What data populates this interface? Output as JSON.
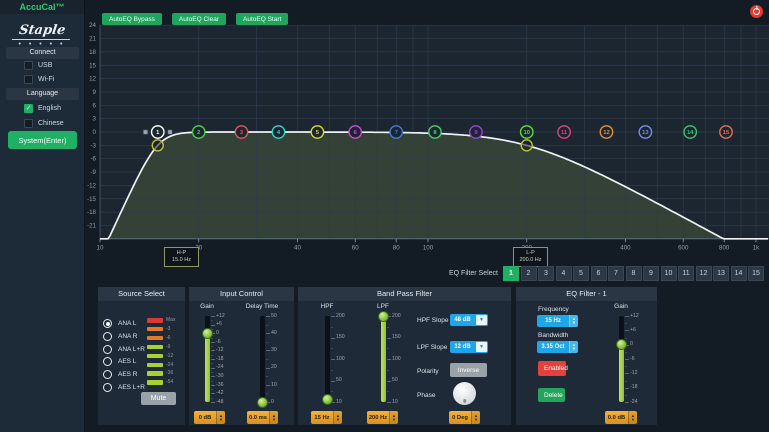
{
  "app": {
    "title": "AccuCal™",
    "brand": "Staple",
    "brand_dots": "• • • • •"
  },
  "sidebar": {
    "connect_header": "Connect",
    "connect_items": [
      {
        "label": "USB",
        "checked": false
      },
      {
        "label": "Wi-Fi",
        "checked": false
      }
    ],
    "language_header": "Language",
    "language_items": [
      {
        "label": "English",
        "checked": true
      },
      {
        "label": "Chinese",
        "checked": false
      }
    ],
    "system_button": "System(Enter)"
  },
  "toolbar": {
    "buttons": [
      "AutoEQ Bypass",
      "AutoEQ Clear",
      "AutoEQ Start"
    ]
  },
  "graph": {
    "type": "line",
    "x_axis": {
      "unit": "Hz",
      "labels": [
        {
          "text": "10",
          "f": 10
        },
        {
          "text": "20",
          "f": 20
        },
        {
          "text": "40",
          "f": 40
        },
        {
          "text": "60",
          "f": 60
        },
        {
          "text": "80",
          "f": 80
        },
        {
          "text": "100",
          "f": 100
        },
        {
          "text": "200",
          "f": 200
        },
        {
          "text": "400",
          "f": 400
        },
        {
          "text": "600",
          "f": 600
        },
        {
          "text": "800",
          "f": 800
        },
        {
          "text": "1k",
          "f": 1000
        }
      ]
    },
    "y_axis": {
      "unit": "dB",
      "min": -24,
      "max": 24,
      "step": 3
    },
    "y_tick_labels": [
      "24",
      "21",
      "18",
      "15",
      "12",
      "9",
      "6",
      "3",
      "0",
      "-3",
      "-6",
      "-9",
      "-12",
      "-15",
      "-18",
      "-21"
    ],
    "grid_freqs": [
      20,
      30,
      40,
      50,
      60,
      70,
      80,
      90,
      100,
      200,
      300,
      400,
      500,
      600,
      700,
      800,
      900,
      1000
    ],
    "curve": {
      "hp_freq_hz": 15,
      "hp_slope_db_oct": 48,
      "lp_freq_hz": 200,
      "lp_slope_db_oct": 12,
      "flat_gain_db": 0
    },
    "points": [
      {
        "n": "1",
        "f": 15,
        "color": "#ffffff",
        "selected": true
      },
      {
        "n": "2",
        "f": 20,
        "color": "#4ad04a"
      },
      {
        "n": "3",
        "f": 27,
        "color": "#e05555"
      },
      {
        "n": "4",
        "f": 35,
        "color": "#2fd6c4"
      },
      {
        "n": "5",
        "f": 46,
        "color": "#d8d832"
      },
      {
        "n": "6",
        "f": 60,
        "color": "#d644d6"
      },
      {
        "n": "7",
        "f": 80,
        "color": "#4479e0"
      },
      {
        "n": "8",
        "f": 105,
        "color": "#44d06a"
      },
      {
        "n": "9",
        "f": 140,
        "color": "#9544e0"
      },
      {
        "n": "10",
        "f": 200,
        "color": "#62d935"
      },
      {
        "n": "11",
        "f": 260,
        "color": "#e04480"
      },
      {
        "n": "12",
        "f": 350,
        "color": "#e0903a"
      },
      {
        "n": "13",
        "f": 460,
        "color": "#7a8ae6"
      },
      {
        "n": "14",
        "f": 630,
        "color": "#3cc272"
      },
      {
        "n": "15",
        "f": 810,
        "color": "#e0705c"
      }
    ],
    "hp_marker": {
      "label": "H-P",
      "value": "15.0 Hz"
    },
    "lp_marker": {
      "label": "L-P",
      "value": "200.0 Hz"
    },
    "handle_color": "#b9c23a"
  },
  "filter_select": {
    "label": "EQ Filter Select",
    "selected": "1",
    "items": [
      "1",
      "2",
      "3",
      "4",
      "5",
      "6",
      "7",
      "8",
      "9",
      "10",
      "11",
      "12",
      "13",
      "14",
      "15"
    ]
  },
  "panels": {
    "source": {
      "title": "Source Select",
      "options": [
        {
          "label": "ANA L",
          "selected": true
        },
        {
          "label": "ANA R",
          "selected": false
        },
        {
          "label": "ANA L+R",
          "selected": false
        },
        {
          "label": "AES L",
          "selected": false
        },
        {
          "label": "AES R",
          "selected": false
        },
        {
          "label": "AES L+R",
          "selected": false
        }
      ],
      "meter": [
        {
          "label": "Max",
          "color": "#d93a32"
        },
        {
          "label": "-3",
          "color": "#e07b28"
        },
        {
          "label": "-6",
          "color": "#e07b28"
        },
        {
          "label": "-9",
          "color": "#a9d22f"
        },
        {
          "label": "-12",
          "color": "#a9d22f"
        },
        {
          "label": "-24",
          "color": "#a9d22f"
        },
        {
          "label": "-36",
          "color": "#a9d22f"
        },
        {
          "label": "-54",
          "color": "#a9d22f"
        }
      ],
      "mute_button": "Mute"
    },
    "input": {
      "title": "Input Control",
      "gain": {
        "label": "Gain",
        "scale": [
          "+12",
          "+6",
          "0",
          "-6",
          "-12",
          "-18",
          "-24",
          "-30",
          "-36",
          "-42",
          "-48"
        ],
        "value": "0 dB"
      },
      "delay": {
        "label": "Delay Time",
        "scale": [
          "50",
          "40",
          "30",
          "20",
          "10",
          "0"
        ],
        "value": "0.0 ms"
      }
    },
    "bandpass": {
      "title": "Band Pass Filter",
      "hpf": {
        "label": "HPF",
        "scale": [
          "200",
          "150",
          "100",
          "50",
          "10"
        ],
        "value": "15 Hz"
      },
      "lpf": {
        "label": "LPF",
        "scale": [
          "200",
          "150",
          "100",
          "50",
          "10"
        ],
        "value": "200 Hz"
      },
      "hpf_slope": {
        "label": "HPF Slope",
        "value": "48 dB"
      },
      "lpf_slope": {
        "label": "LPF Slope",
        "value": "12 dB"
      },
      "polarity": {
        "label": "Polarity",
        "button": "Inverse"
      },
      "phase": {
        "label": "Phase",
        "value": "0 Deg"
      }
    },
    "eq": {
      "title": "EQ Filter - 1",
      "frequency": {
        "label": "Frequency",
        "value": "15 Hz"
      },
      "bandwidth": {
        "label": "Bandwidth",
        "value": "3.15 Oct"
      },
      "enabled_button": "Enabled",
      "delete_button": "Delete",
      "gain": {
        "label": "Gain",
        "scale": [
          "+12",
          "+6",
          "0",
          "-6",
          "-12",
          "-18",
          "-24"
        ],
        "value": "0.0 dB"
      }
    }
  },
  "colors": {
    "accent_green": "#1fb065",
    "value_box": "#eda12b",
    "input_blue": "#1ea7e8",
    "enabled_red": "#e5403a",
    "mute_gray": "#99a1a9",
    "curve": "#eef2f5",
    "graph_bg": "#1c2631",
    "fill_under_curve": "#55663f"
  }
}
